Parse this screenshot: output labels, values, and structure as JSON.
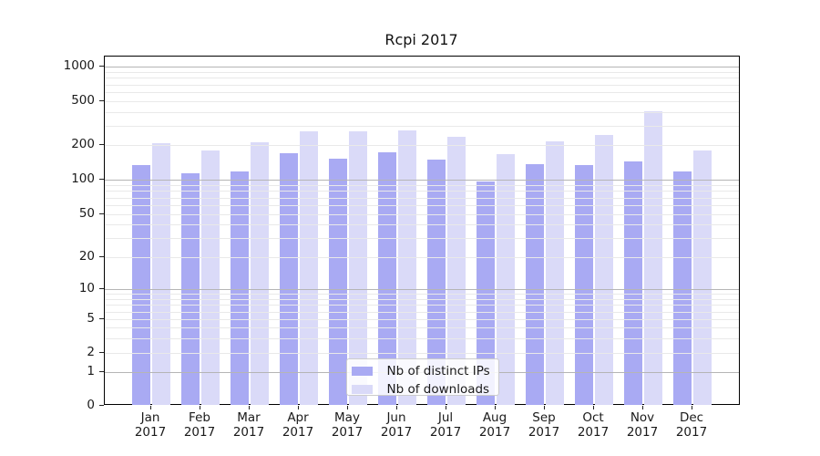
{
  "figure": {
    "title": "Rcpi 2017"
  },
  "chart_data": {
    "type": "bar",
    "title": "Rcpi 2017",
    "categories": [
      "Jan 2017",
      "Feb 2017",
      "Mar 2017",
      "Apr 2017",
      "May 2017",
      "Jun 2017",
      "Jul 2017",
      "Aug 2017",
      "Sep 2017",
      "Oct 2017",
      "Nov 2017",
      "Dec 2017"
    ],
    "months": [
      "Jan",
      "Feb",
      "Mar",
      "Apr",
      "May",
      "Jun",
      "Jul",
      "Aug",
      "Sep",
      "Oct",
      "Nov",
      "Dec"
    ],
    "x_tick_year": "2017",
    "series": [
      {
        "name": "Nb of distinct IPs",
        "color": "#a9aaf3",
        "values": [
          133,
          114,
          117,
          169,
          154,
          175,
          149,
          96,
          136,
          133,
          145,
          118
        ]
      },
      {
        "name": "Nb of downloads",
        "color": "#dadaf8",
        "values": [
          207,
          180,
          214,
          266,
          266,
          274,
          239,
          168,
          218,
          246,
          410,
          181
        ]
      }
    ],
    "yscale": "symlog",
    "yticks": [
      0,
      1,
      2,
      5,
      10,
      20,
      50,
      100,
      200,
      500,
      1000
    ],
    "ylim": [
      0,
      1220
    ],
    "grid": true,
    "grid_major_color": "#b5b5b5",
    "grid_minor_color": "#e9e9e9",
    "legend_position": "lower-center"
  },
  "legend": {
    "items": [
      {
        "label": "Nb of distinct IPs"
      },
      {
        "label": "Nb of downloads"
      }
    ]
  }
}
